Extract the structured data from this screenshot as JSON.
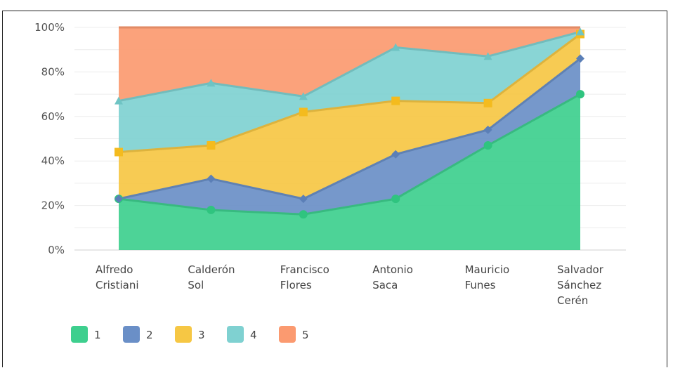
{
  "chart_data": {
    "type": "area",
    "stacked": true,
    "percent": true,
    "title": "",
    "xlabel": "",
    "ylabel": "",
    "ylim": [
      0,
      100
    ],
    "y_ticks": [
      "0%",
      "20%",
      "40%",
      "60%",
      "80%",
      "100%"
    ],
    "grid": true,
    "legend_position": "bottom-left",
    "categories": [
      [
        "Alfredo",
        "Cristiani"
      ],
      [
        "Calderón",
        "Sol"
      ],
      [
        "Francisco",
        "Flores"
      ],
      [
        "Antonio",
        "Saca"
      ],
      [
        "Mauricio",
        "Funes"
      ],
      [
        "Salvador",
        "Sánchez",
        "Cerén"
      ]
    ],
    "series": [
      {
        "name": "1",
        "color": "#3ecf8e",
        "marker": "circle",
        "values": [
          23,
          18,
          16,
          23,
          47,
          70
        ]
      },
      {
        "name": "2",
        "color": "#6a8fc7",
        "marker": "diamond",
        "values": [
          0,
          14,
          7,
          20,
          7,
          16
        ]
      },
      {
        "name": "3",
        "color": "#f6c744",
        "marker": "square",
        "values": [
          21,
          15,
          39,
          24,
          12,
          11
        ]
      },
      {
        "name": "4",
        "color": "#7fd1d1",
        "marker": "triangle",
        "values": [
          23,
          28,
          7,
          24,
          21,
          1
        ]
      },
      {
        "name": "5",
        "color": "#fb9a70",
        "marker": "none",
        "values": [
          33,
          25,
          31,
          9,
          13,
          2
        ]
      }
    ]
  }
}
